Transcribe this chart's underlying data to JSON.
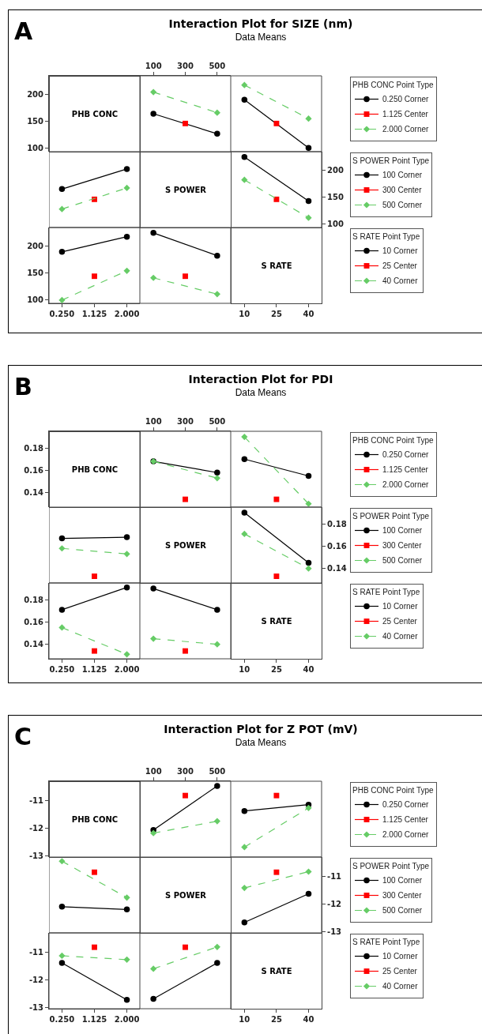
{
  "chart_data": [
    {
      "type": "other",
      "title": "Interaction Plot for SIZE (nm)",
      "subtitle": "Data Means",
      "annotations": [
        "A"
      ]
    },
    {
      "type": "other",
      "title": "PHB CONC"
    },
    {
      "type": "line",
      "xlim": [
        -555,
        585
      ],
      "xticks": [
        100,
        300,
        500
      ],
      "ylim": [
        94,
        234
      ],
      "yticks": [
        100,
        150,
        200
      ],
      "series": [
        {
          "color": "#000000",
          "marker": "circle",
          "line_style": "solid",
          "x": [
            100,
            500
          ],
          "values": [
            164,
            127
          ]
        },
        {
          "color": "#ff0000",
          "marker": "square",
          "line_style": "solid",
          "x": [
            300
          ],
          "values": [
            146
          ]
        },
        {
          "color": "#66cc66",
          "marker": "diamond",
          "line_style": "dashed",
          "x": [
            100,
            500
          ],
          "values": [
            204,
            166
          ]
        }
      ]
    },
    {
      "type": "line",
      "tick_labels": false,
      "legend": "right",
      "legend_title": "PHB CONC Point Type",
      "xlim": [
        3.6,
        46.1
      ],
      "xticks": [
        10,
        25,
        40
      ],
      "ylim": [
        94,
        234
      ],
      "yticks": [
        100,
        150,
        200
      ],
      "series": [
        {
          "name": "0.250 Corner",
          "color": "#000000",
          "marker": "circle",
          "line_style": "solid",
          "x": [
            10,
            40
          ],
          "values": [
            190,
            101
          ]
        },
        {
          "name": "1.125 Center",
          "color": "#ff0000",
          "marker": "square",
          "line_style": "solid",
          "x": [
            25
          ],
          "values": [
            146
          ]
        },
        {
          "name": "2.000 Corner",
          "color": "#66cc66",
          "marker": "diamond",
          "line_style": "dashed",
          "x": [
            10,
            40
          ],
          "values": [
            217,
            155
          ]
        }
      ]
    },
    {
      "type": "line",
      "tick_labels": false,
      "xlim": [
        -0.1,
        2.35
      ],
      "xticks": [
        0.25,
        1.125,
        2
      ],
      "ylim": [
        94,
        234
      ],
      "yticks": [
        100,
        150,
        200
      ],
      "series": [
        {
          "color": "#000000",
          "marker": "circle",
          "line_style": "solid",
          "x": [
            0.25,
            2
          ],
          "values": [
            165,
            202
          ]
        },
        {
          "color": "#ff0000",
          "marker": "square",
          "line_style": "solid",
          "x": [
            1.125
          ],
          "values": [
            146
          ]
        },
        {
          "color": "#66cc66",
          "marker": "diamond",
          "line_style": "dashed",
          "x": [
            0.25,
            2
          ],
          "values": [
            128,
            167
          ]
        }
      ]
    },
    {
      "type": "other",
      "title": "S POWER"
    },
    {
      "type": "line",
      "legend": "right",
      "legend_title": "S POWER Point Type",
      "xlim": [
        3.6,
        46.1
      ],
      "xticks": [
        10,
        25,
        40
      ],
      "ylim": [
        -46,
        234
      ],
      "yticks": [
        100,
        150,
        200
      ],
      "series": [
        {
          "name": "100 Corner",
          "color": "#000000",
          "marker": "circle",
          "line_style": "solid",
          "x": [
            10,
            40
          ],
          "values": [
            224,
            143
          ]
        },
        {
          "name": "300 Center",
          "color": "#ff0000",
          "marker": "square",
          "line_style": "solid",
          "x": [
            25
          ],
          "values": [
            146
          ]
        },
        {
          "name": "500 Corner",
          "color": "#66cc66",
          "marker": "diamond",
          "line_style": "dashed",
          "x": [
            10,
            40
          ],
          "values": [
            182,
            112
          ]
        }
      ]
    },
    {
      "type": "line",
      "xlim": [
        -0.1,
        2.35
      ],
      "xticks": [
        {
          "value": 0.25,
          "label": "0.250"
        },
        {
          "value": 1.125,
          "label": "1.125"
        },
        {
          "value": 2,
          "label": "2.000"
        }
      ],
      "ylim": [
        94,
        234
      ],
      "yticks": [
        100,
        150,
        200
      ],
      "series": [
        {
          "color": "#000000",
          "marker": "circle",
          "line_style": "solid",
          "x": [
            0.25,
            2
          ],
          "values": [
            189,
            217
          ]
        },
        {
          "color": "#ff0000",
          "marker": "square",
          "line_style": "solid",
          "x": [
            1.125
          ],
          "values": [
            144
          ]
        },
        {
          "color": "#66cc66",
          "marker": "diamond",
          "line_style": "dashed",
          "x": [
            0.25,
            2
          ],
          "values": [
            100,
            154
          ]
        }
      ]
    },
    {
      "type": "line",
      "tick_labels": false,
      "legend": "right",
      "legend_title": "S RATE Point Type",
      "xlim": [
        15,
        585
      ],
      "xticks": [
        100,
        300,
        500
      ],
      "ylim": [
        94,
        234
      ],
      "yticks": [
        100,
        150,
        200
      ],
      "series": [
        {
          "name": "10 Corner",
          "color": "#000000",
          "marker": "circle",
          "line_style": "solid",
          "x": [
            100,
            500
          ],
          "values": [
            224,
            182
          ]
        },
        {
          "name": "25 Center",
          "color": "#ff0000",
          "marker": "square",
          "line_style": "solid",
          "x": [
            300
          ],
          "values": [
            144
          ]
        },
        {
          "name": "40 Corner",
          "color": "#66cc66",
          "marker": "diamond",
          "line_style": "dashed",
          "x": [
            100,
            500
          ],
          "values": [
            141,
            111
          ]
        }
      ]
    },
    {
      "type": "other",
      "title": "S RATE"
    },
    {
      "type": "other",
      "title": "Interaction Plot for PDI",
      "subtitle": "Data Means",
      "annotations": [
        "B"
      ]
    },
    {
      "type": "other",
      "title": "PHB CONC"
    },
    {
      "type": "line",
      "xlim": [
        -555,
        585
      ],
      "xticks": [
        100,
        300,
        500
      ],
      "ylim": [
        0.127,
        0.195
      ],
      "yticks": [
        0.14,
        0.16,
        0.18
      ],
      "series": [
        {
          "color": "#000000",
          "marker": "circle",
          "line_style": "solid",
          "x": [
            100,
            500
          ],
          "values": [
            0.168,
            0.158
          ]
        },
        {
          "color": "#ff0000",
          "marker": "square",
          "line_style": "solid",
          "x": [
            300
          ],
          "values": [
            0.134
          ]
        },
        {
          "color": "#66cc66",
          "marker": "diamond",
          "line_style": "dashed",
          "x": [
            100,
            500
          ],
          "values": [
            0.168,
            0.153
          ]
        }
      ]
    },
    {
      "type": "line",
      "tick_labels": false,
      "legend": "right",
      "legend_title": "PHB CONC Point Type",
      "xlim": [
        3.6,
        46.1
      ],
      "xticks": [
        10,
        25,
        40
      ],
      "ylim": [
        0.127,
        0.195
      ],
      "yticks": [
        0.14,
        0.16,
        0.18
      ],
      "series": [
        {
          "name": "0.250 Corner",
          "color": "#000000",
          "marker": "circle",
          "line_style": "solid",
          "x": [
            10,
            40
          ],
          "values": [
            0.17,
            0.155
          ]
        },
        {
          "name": "1.125 Center",
          "color": "#ff0000",
          "marker": "square",
          "line_style": "solid",
          "x": [
            25
          ],
          "values": [
            0.134
          ]
        },
        {
          "name": "2.000 Corner",
          "color": "#66cc66",
          "marker": "diamond",
          "line_style": "dashed",
          "x": [
            10,
            40
          ],
          "values": [
            0.19,
            0.13
          ]
        }
      ]
    },
    {
      "type": "line",
      "tick_labels": false,
      "xlim": [
        -0.1,
        2.35
      ],
      "xticks": [
        0.25,
        1.125,
        2
      ],
      "ylim": [
        0.127,
        0.195
      ],
      "yticks": [
        0.14,
        0.16,
        0.18
      ],
      "series": [
        {
          "color": "#000000",
          "marker": "circle",
          "line_style": "solid",
          "x": [
            0.25,
            2
          ],
          "values": [
            0.167,
            0.168
          ]
        },
        {
          "color": "#ff0000",
          "marker": "square",
          "line_style": "solid",
          "x": [
            1.125
          ],
          "values": [
            0.133
          ]
        },
        {
          "color": "#66cc66",
          "marker": "diamond",
          "line_style": "dashed",
          "x": [
            0.25,
            2
          ],
          "values": [
            0.158,
            0.153
          ]
        }
      ]
    },
    {
      "type": "other",
      "title": "S POWER"
    },
    {
      "type": "line",
      "legend": "right",
      "legend_title": "S POWER Point Type",
      "xlim": [
        3.6,
        46.1
      ],
      "xticks": [
        10,
        25,
        40
      ],
      "ylim": [
        0.059,
        0.195
      ],
      "yticks": [
        0.14,
        0.16,
        0.18
      ],
      "series": [
        {
          "name": "100 Corner",
          "color": "#000000",
          "marker": "circle",
          "line_style": "solid",
          "x": [
            10,
            40
          ],
          "values": [
            0.19,
            0.145
          ]
        },
        {
          "name": "300 Center",
          "color": "#ff0000",
          "marker": "square",
          "line_style": "solid",
          "x": [
            25
          ],
          "values": [
            0.133
          ]
        },
        {
          "name": "500 Corner",
          "color": "#66cc66",
          "marker": "diamond",
          "line_style": "dashed",
          "x": [
            10,
            40
          ],
          "values": [
            0.171,
            0.14
          ]
        }
      ]
    },
    {
      "type": "line",
      "xlim": [
        -0.1,
        2.35
      ],
      "xticks": [
        {
          "value": 0.25,
          "label": "0.250"
        },
        {
          "value": 1.125,
          "label": "1.125"
        },
        {
          "value": 2,
          "label": "2.000"
        }
      ],
      "ylim": [
        0.127,
        0.195
      ],
      "yticks": [
        0.14,
        0.16,
        0.18
      ],
      "series": [
        {
          "color": "#000000",
          "marker": "circle",
          "line_style": "solid",
          "x": [
            0.25,
            2
          ],
          "values": [
            0.171,
            0.191
          ]
        },
        {
          "color": "#ff0000",
          "marker": "square",
          "line_style": "solid",
          "x": [
            1.125
          ],
          "values": [
            0.134
          ]
        },
        {
          "color": "#66cc66",
          "marker": "diamond",
          "line_style": "dashed",
          "x": [
            0.25,
            2
          ],
          "values": [
            0.155,
            0.131
          ]
        }
      ]
    },
    {
      "type": "line",
      "tick_labels": false,
      "legend": "right",
      "legend_title": "S RATE Point Type",
      "xlim": [
        15,
        585
      ],
      "xticks": [
        100,
        300,
        500
      ],
      "ylim": [
        0.127,
        0.195
      ],
      "yticks": [
        0.14,
        0.16,
        0.18
      ],
      "series": [
        {
          "name": "10 Corner",
          "color": "#000000",
          "marker": "circle",
          "line_style": "solid",
          "x": [
            100,
            500
          ],
          "values": [
            0.19,
            0.171
          ]
        },
        {
          "name": "25 Center",
          "color": "#ff0000",
          "marker": "square",
          "line_style": "solid",
          "x": [
            300
          ],
          "values": [
            0.134
          ]
        },
        {
          "name": "40 Corner",
          "color": "#66cc66",
          "marker": "diamond",
          "line_style": "dashed",
          "x": [
            100,
            500
          ],
          "values": [
            0.145,
            0.14
          ]
        }
      ]
    },
    {
      "type": "other",
      "title": "S RATE"
    },
    {
      "type": "other",
      "title": "Interaction Plot for Z POT (mV)",
      "subtitle": "Data Means",
      "annotations": [
        "C"
      ]
    },
    {
      "type": "other",
      "title": "PHB CONC"
    },
    {
      "type": "line",
      "xlim": [
        -555,
        585
      ],
      "xticks": [
        100,
        300,
        500
      ],
      "ylim": [
        -13.05,
        -10.3
      ],
      "yticks": [
        -13,
        -12,
        -11
      ],
      "series": [
        {
          "color": "#000000",
          "marker": "circle",
          "line_style": "solid",
          "x": [
            100,
            500
          ],
          "values": [
            -12.07,
            -10.47
          ]
        },
        {
          "color": "#ff0000",
          "marker": "square",
          "line_style": "solid",
          "x": [
            300
          ],
          "values": [
            -10.82
          ]
        },
        {
          "color": "#66cc66",
          "marker": "diamond",
          "line_style": "dashed",
          "x": [
            100,
            500
          ],
          "values": [
            -12.18,
            -11.75
          ]
        }
      ]
    },
    {
      "type": "line",
      "tick_labels": false,
      "legend": "right",
      "legend_title": "PHB CONC Point Type",
      "xlim": [
        3.6,
        46.1
      ],
      "xticks": [
        10,
        25,
        40
      ],
      "ylim": [
        -13.05,
        -10.3
      ],
      "yticks": [
        -13,
        -12,
        -11
      ],
      "series": [
        {
          "name": "0.250 Corner",
          "color": "#000000",
          "marker": "circle",
          "line_style": "solid",
          "x": [
            10,
            40
          ],
          "values": [
            -11.38,
            -11.15
          ]
        },
        {
          "name": "1.125 Center",
          "color": "#ff0000",
          "marker": "square",
          "line_style": "solid",
          "x": [
            25
          ],
          "values": [
            -10.82
          ]
        },
        {
          "name": "2.000 Corner",
          "color": "#66cc66",
          "marker": "diamond",
          "line_style": "dashed",
          "x": [
            10,
            40
          ],
          "values": [
            -12.69,
            -11.27
          ]
        }
      ]
    },
    {
      "type": "line",
      "tick_labels": false,
      "xlim": [
        -0.1,
        2.35
      ],
      "xticks": [
        0.25,
        1.125,
        2
      ],
      "ylim": [
        -13.05,
        -10.3
      ],
      "yticks": [
        -13,
        -12,
        -11
      ],
      "series": [
        {
          "color": "#000000",
          "marker": "circle",
          "line_style": "solid",
          "x": [
            0.25,
            2
          ],
          "values": [
            -12.1,
            -12.2
          ]
        },
        {
          "color": "#ff0000",
          "marker": "square",
          "line_style": "solid",
          "x": [
            1.125
          ],
          "values": [
            -10.85
          ]
        },
        {
          "color": "#66cc66",
          "marker": "diamond",
          "line_style": "dashed",
          "x": [
            0.25,
            2
          ],
          "values": [
            -10.45,
            -11.77
          ]
        }
      ]
    },
    {
      "type": "other",
      "title": "S POWER"
    },
    {
      "type": "line",
      "legend": "right",
      "legend_title": "S POWER Point Type",
      "xlim": [
        3.6,
        46.1
      ],
      "xticks": [
        10,
        25,
        40
      ],
      "ylim": [
        -15.8,
        -10.3
      ],
      "yticks": [
        -13,
        -12,
        -11
      ],
      "series": [
        {
          "name": "100 Corner",
          "color": "#000000",
          "marker": "circle",
          "line_style": "solid",
          "x": [
            10,
            40
          ],
          "values": [
            -12.67,
            -11.63
          ]
        },
        {
          "name": "300 Center",
          "color": "#ff0000",
          "marker": "square",
          "line_style": "solid",
          "x": [
            25
          ],
          "values": [
            -10.85
          ]
        },
        {
          "name": "500 Corner",
          "color": "#66cc66",
          "marker": "diamond",
          "line_style": "dashed",
          "x": [
            10,
            40
          ],
          "values": [
            -11.42,
            -10.83
          ]
        }
      ]
    },
    {
      "type": "line",
      "xlim": [
        -0.1,
        2.35
      ],
      "xticks": [
        {
          "value": 0.25,
          "label": "0.250"
        },
        {
          "value": 1.125,
          "label": "1.125"
        },
        {
          "value": 2,
          "label": "2.000"
        }
      ],
      "ylim": [
        -13.05,
        -10.3
      ],
      "yticks": [
        -13,
        -12,
        -11
      ],
      "series": [
        {
          "color": "#000000",
          "marker": "circle",
          "line_style": "solid",
          "x": [
            0.25,
            2
          ],
          "values": [
            -11.39,
            -12.73
          ]
        },
        {
          "color": "#ff0000",
          "marker": "square",
          "line_style": "solid",
          "x": [
            1.125
          ],
          "values": [
            -10.82
          ]
        },
        {
          "color": "#66cc66",
          "marker": "diamond",
          "line_style": "dashed",
          "x": [
            0.25,
            2
          ],
          "values": [
            -11.13,
            -11.27
          ]
        }
      ]
    },
    {
      "type": "line",
      "tick_labels": false,
      "legend": "right",
      "legend_title": "S RATE Point Type",
      "xlim": [
        15,
        585
      ],
      "xticks": [
        100,
        300,
        500
      ],
      "ylim": [
        -13.05,
        -10.3
      ],
      "yticks": [
        -13,
        -12,
        -11
      ],
      "series": [
        {
          "name": "10 Corner",
          "color": "#000000",
          "marker": "circle",
          "line_style": "solid",
          "x": [
            100,
            500
          ],
          "values": [
            -12.69,
            -11.39
          ]
        },
        {
          "name": "25 Center",
          "color": "#ff0000",
          "marker": "square",
          "line_style": "solid",
          "x": [
            300
          ],
          "values": [
            -10.82
          ]
        },
        {
          "name": "40 Corner",
          "color": "#66cc66",
          "marker": "diamond",
          "line_style": "dashed",
          "x": [
            100,
            500
          ],
          "values": [
            -11.6,
            -10.81
          ]
        }
      ]
    },
    {
      "type": "other",
      "title": "S RATE"
    }
  ]
}
